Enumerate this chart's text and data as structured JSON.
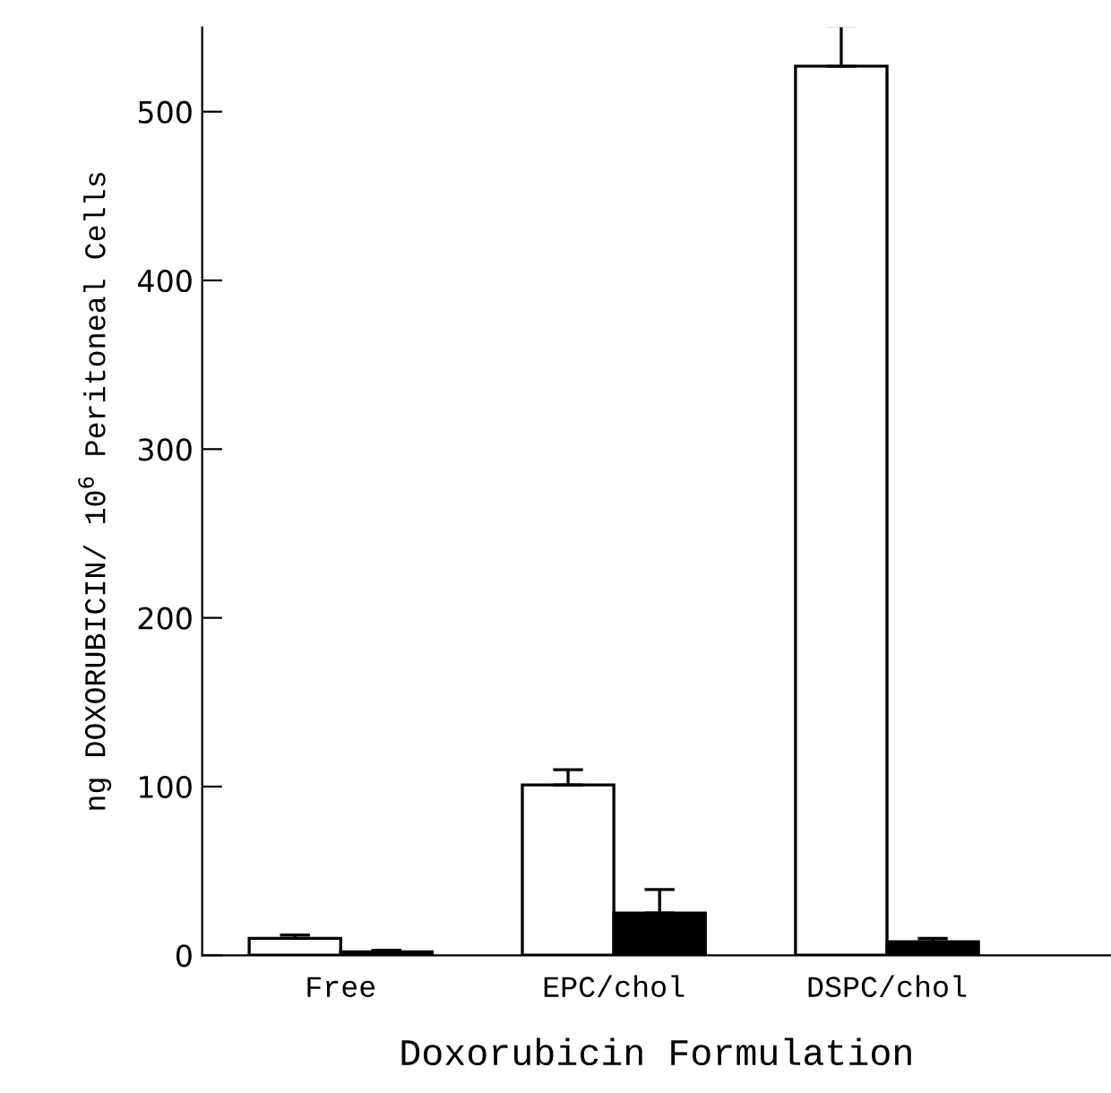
{
  "chart_data": {
    "type": "bar",
    "xlabel": "Doxorubicin Formulation",
    "ylabel": "ng DOXORUBICIN/ 10$^{6}$ Peritoneal Cells",
    "categories": [
      "Free",
      "EPC/chol",
      "DSPC/chol"
    ],
    "series": [
      {
        "color": "#ffffff",
        "values": [
          10,
          101,
          527
        ],
        "errors": [
          [
            10,
            12
          ],
          [
            101,
            110
          ],
          [
            527,
            551
          ]
        ]
      },
      {
        "color": "#000000",
        "values": [
          2,
          25,
          8
        ],
        "errors": [
          [
            2,
            3
          ],
          [
            25,
            39
          ],
          [
            8,
            10
          ]
        ]
      }
    ],
    "ylim": [
      0,
      550
    ],
    "yticks": [
      0,
      100,
      200,
      300,
      400,
      500
    ],
    "grid": false,
    "legend": false
  }
}
